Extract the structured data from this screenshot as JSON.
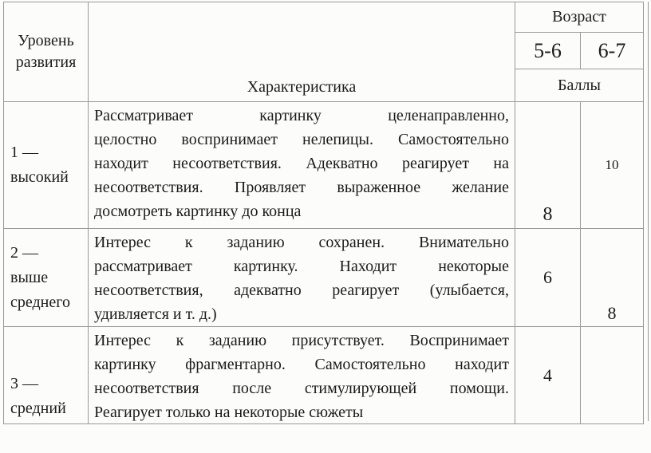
{
  "colors": {
    "table_border": "#9a9a9a",
    "text": "#1b1b1b",
    "page_background": "#fcfcfa"
  },
  "table": {
    "header": {
      "level": "Уровень\nразвития",
      "characteristic": "Характеристика",
      "age": "Возраст",
      "age_groups": [
        "5-6",
        "6-7"
      ],
      "scores": "Баллы"
    },
    "rows": [
      {
        "level": "1 —\nвысокий",
        "characteristic": "Рассматривает картинку целенаправленно,\nцелостно воспринимает нелепицы. Самостоятельно\nнаходит несоответствия. Адекватно реагирует на\nнесоответствия. Проявляет выраженное желание\nдосмотреть картинку до конца",
        "scores": {
          "age_5_6": "8",
          "age_6_7": "10"
        }
      },
      {
        "level": "2 —\nвыше\nсреднего",
        "characteristic": "Интерес к заданию сохранен. Внимательно\nрассматривает картинку. Находит некоторые\nнесоответствия, адекватно реагирует (улыбается,\nудивляется и т. д.)",
        "scores": {
          "age_5_6": "6",
          "age_6_7": "8"
        }
      },
      {
        "level": "3 —\nсредний",
        "characteristic": "Интерес к заданию присутствует. Воспринимает\nкартинку фрагментарно. Самостоятельно находит\nнесоответствия после стимулирующей помощи.\nРеагирует только на некоторые сюжеты",
        "scores": {
          "age_5_6": "4",
          "age_6_7": ""
        }
      }
    ]
  }
}
